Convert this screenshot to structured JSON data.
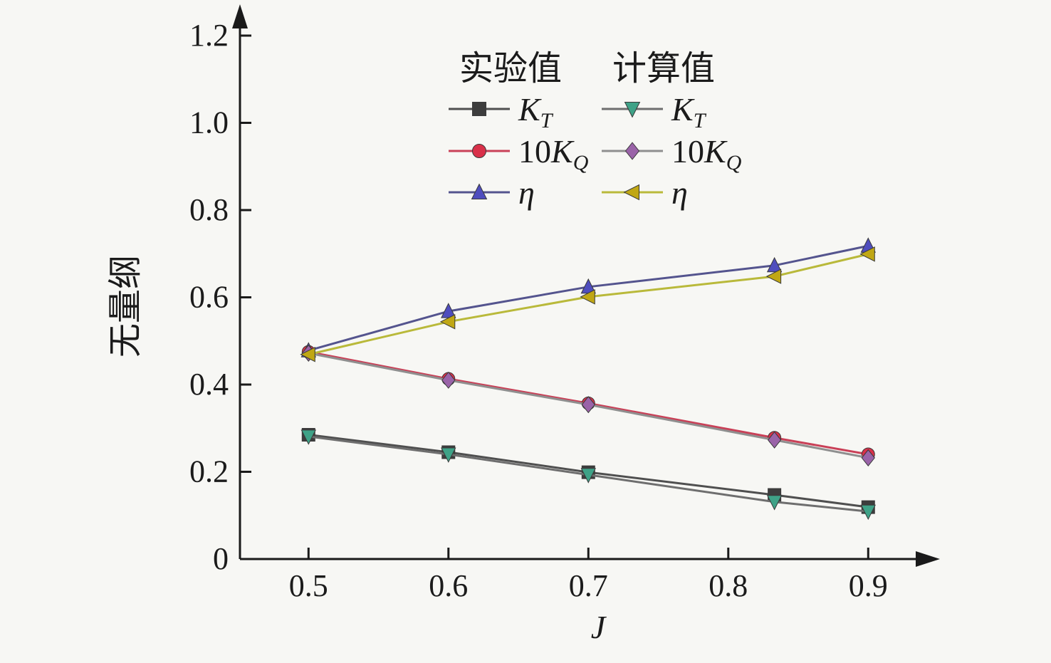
{
  "figure": {
    "background": "#f7f7f4",
    "axis_color": "#1a1a1a"
  },
  "chart_data": {
    "type": "line",
    "title": "",
    "xlabel": "J",
    "ylabel": "无量纲",
    "grid": false,
    "legend_position": "upper center, two columns, no frame",
    "xlim": [
      0.451,
      0.951
    ],
    "ylim": [
      0,
      1.26
    ],
    "x_tick_values": [
      0.5,
      0.6,
      0.7,
      0.8,
      0.9
    ],
    "x_tick_labels": [
      "0.5",
      "0.6",
      "0.7",
      "0.8",
      "0.9"
    ],
    "y_tick_values": [
      0,
      0.2,
      0.4,
      0.6,
      0.8,
      1.0,
      1.2
    ],
    "y_tick_labels": [
      "0",
      "0.2",
      "0.4",
      "0.6",
      "0.8",
      "1.0",
      "1.2"
    ],
    "x": [
      0.5,
      0.6,
      0.7,
      0.833,
      0.9
    ],
    "series": [
      {
        "group": "实验值",
        "name": "K_T",
        "marker": "square",
        "marker_color": "#3d3d3d",
        "line_color": "#4f4f4f",
        "values": [
          0.285,
          0.245,
          0.199,
          0.147,
          0.119
        ]
      },
      {
        "group": "实验值",
        "name": "10K_Q",
        "marker": "circle",
        "marker_color": "#d93049",
        "line_color": "#c94057",
        "values": [
          0.475,
          0.413,
          0.357,
          0.278,
          0.24
        ]
      },
      {
        "group": "实验值",
        "name": "η",
        "marker": "triangle-up",
        "marker_color": "#4f4dbe",
        "line_color": "#54548e",
        "values": [
          0.478,
          0.568,
          0.624,
          0.673,
          0.718
        ]
      },
      {
        "group": "计算值",
        "name": "K_T",
        "marker": "triangle-down",
        "marker_color": "#3fa287",
        "line_color": "#6e6e6e",
        "values": [
          0.281,
          0.24,
          0.193,
          0.131,
          0.109
        ]
      },
      {
        "group": "计算值",
        "name": "10K_Q",
        "marker": "diamond",
        "marker_color": "#9a63a8",
        "line_color": "#8f8f8f",
        "values": [
          0.472,
          0.41,
          0.354,
          0.273,
          0.232
        ]
      },
      {
        "group": "计算值",
        "name": "η",
        "marker": "triangle-left",
        "marker_color": "#c0a714",
        "line_color": "#b9b93a",
        "values": [
          0.469,
          0.544,
          0.601,
          0.648,
          0.699
        ]
      }
    ],
    "legend": {
      "headers": [
        "实验值",
        "计算值"
      ],
      "columns": [
        [
          0,
          1,
          2
        ],
        [
          3,
          4,
          5
        ]
      ]
    }
  }
}
